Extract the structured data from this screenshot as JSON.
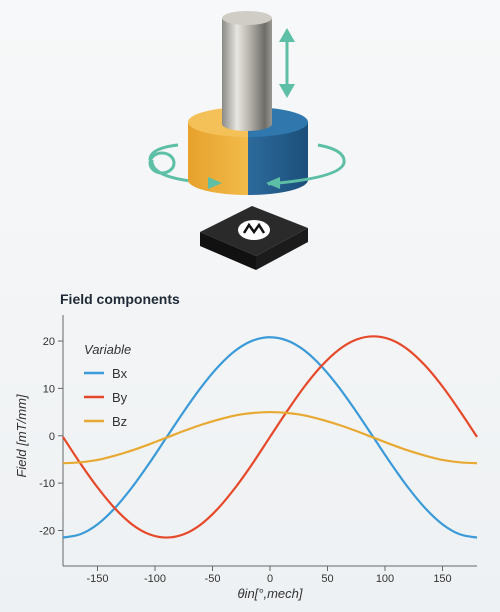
{
  "chart_data": {
    "type": "line",
    "title": "Field components",
    "x_label": "θin[°,mech]",
    "y_label": "Field [mT/mm]",
    "legend_title": "Variable",
    "x": [
      -180,
      -165,
      -150,
      -135,
      -120,
      -105,
      -90,
      -75,
      -60,
      -45,
      -30,
      -15,
      0,
      15,
      30,
      45,
      60,
      75,
      90,
      105,
      120,
      135,
      150,
      165,
      180
    ],
    "series": [
      {
        "name": "Bx",
        "color": "#3b9ad8",
        "values": [
          -21.5,
          -20.8,
          -18.7,
          -15.3,
          -10.9,
          -5.8,
          -0.35,
          5.1,
          10.2,
          14.6,
          18.0,
          20.1,
          20.8,
          20.1,
          18.0,
          14.6,
          10.2,
          5.1,
          -0.35,
          -5.8,
          -10.9,
          -15.3,
          -18.7,
          -20.8,
          -21.5
        ]
      },
      {
        "name": "By",
        "color": "#e6482a",
        "values": [
          -0.25,
          -5.8,
          -10.9,
          -15.3,
          -18.7,
          -20.8,
          -21.5,
          -20.8,
          -18.7,
          -15.3,
          -10.9,
          -5.8,
          -0.25,
          5.25,
          10.4,
          14.8,
          18.2,
          20.3,
          21.0,
          20.3,
          18.2,
          14.8,
          10.4,
          5.25,
          -0.25
        ]
      },
      {
        "name": "Bz",
        "color": "#e8a932",
        "values": [
          -5.8,
          -5.6,
          -5.1,
          -4.2,
          -3.1,
          -1.8,
          -0.4,
          1.0,
          2.3,
          3.4,
          4.3,
          4.8,
          5.0,
          4.8,
          4.3,
          3.4,
          2.3,
          1.0,
          -0.4,
          -1.8,
          -3.1,
          -4.2,
          -5.1,
          -5.6,
          -5.8
        ]
      }
    ],
    "xlim": [
      -180,
      180
    ],
    "xticks": [
      -150,
      -100,
      -50,
      0,
      50,
      100,
      150
    ],
    "ylim": [
      -27.5,
      25.5
    ],
    "yticks": [
      -20,
      -10,
      0,
      10,
      20
    ]
  }
}
